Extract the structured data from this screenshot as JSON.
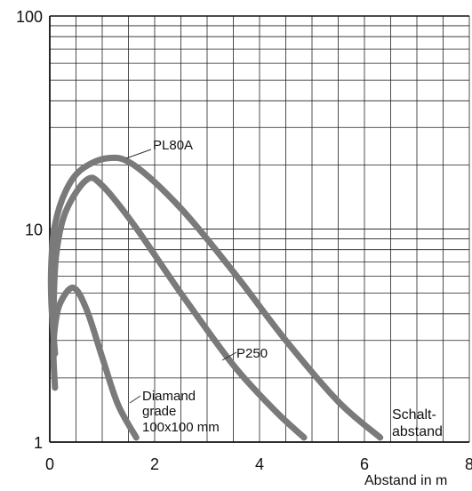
{
  "chart_data": {
    "type": "line",
    "ylog": true,
    "xlim": [
      0,
      8
    ],
    "ylim": [
      1,
      100
    ],
    "xticks": [
      "0",
      "2",
      "4",
      "6",
      "8"
    ],
    "yticks": [
      "1",
      "10",
      "100"
    ],
    "xlabel": "Abstand in m",
    "ylabel": "",
    "title": "",
    "grid": true,
    "series": [
      {
        "name": "PL80A",
        "x": [
          0.1,
          0.03,
          0.03,
          0.1,
          0.3,
          0.6,
          1.1,
          1.6,
          2.5,
          3.5,
          4.5,
          5.5,
          6.3
        ],
        "y": [
          2.6,
          4.5,
          7.0,
          10.5,
          15.0,
          19.0,
          21.5,
          20.0,
          12.5,
          6.3,
          3.0,
          1.55,
          1.05
        ]
      },
      {
        "name": "P250",
        "x": [
          0.07,
          0.07,
          0.12,
          0.3,
          0.7,
          1.0,
          1.6,
          2.5,
          3.5,
          4.3,
          4.85
        ],
        "y": [
          3.2,
          4.0,
          7.5,
          12.0,
          17.0,
          16.0,
          10.5,
          5.0,
          2.3,
          1.4,
          1.05
        ]
      },
      {
        "name": "Diamand grade 100x100 mm",
        "x": [
          0.1,
          0.07,
          0.1,
          0.2,
          0.45,
          0.7,
          1.0,
          1.3,
          1.65
        ],
        "y": [
          1.8,
          2.6,
          3.5,
          4.5,
          5.3,
          4.2,
          2.5,
          1.5,
          1.05
        ]
      }
    ],
    "annotations": {
      "pl80a": "PL80A",
      "p250": "P250",
      "diamand_1": "Diamand",
      "diamand_2": "grade",
      "diamand_3": "100x100 mm",
      "schalt_1": "Schalt-",
      "schalt_2": "abstand"
    }
  }
}
